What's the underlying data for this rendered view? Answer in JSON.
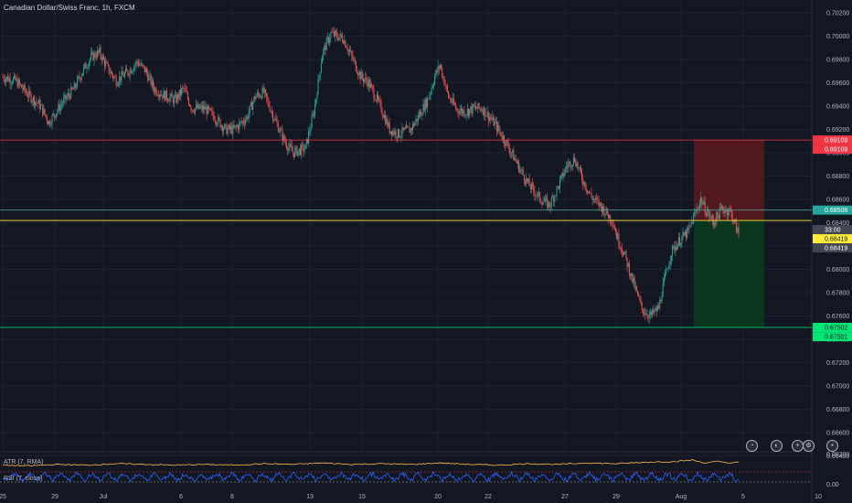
{
  "header": {
    "title": "Canadian Dollar/Swiss Franc, 1h, FXCM"
  },
  "indicators": {
    "atr_label": "ATR (7, RMA)",
    "rsi_label": "RSI (7, close)"
  },
  "toolbar": {
    "icons": [
      "alert-icon",
      "gear-icon",
      "add-icon",
      "settings-icon",
      "more-icon"
    ]
  },
  "chart_data": {
    "type": "candlestick",
    "title": "Canadian Dollar/Swiss Franc, 1h, FXCM",
    "y_ticks": [
      "0.70200",
      "0.70000",
      "0.69800",
      "0.69600",
      "0.69400",
      "0.69200",
      "0.69000",
      "0.68800",
      "0.68600",
      "0.68400",
      "0.68200",
      "0.68000",
      "0.67800",
      "0.67600",
      "0.67400",
      "0.67200",
      "0.67000",
      "0.66800",
      "0.66600",
      "0.66400"
    ],
    "ylim": [
      0.6637,
      0.7028
    ],
    "x_ticks": [
      "25",
      "29",
      "Jul",
      "6",
      "8",
      "13",
      "15",
      "20",
      "22",
      "27",
      "29",
      "Aug",
      "5",
      "10"
    ],
    "close_path": [
      [
        0,
        0.6965
      ],
      [
        3,
        0.6962
      ],
      [
        6,
        0.695
      ],
      [
        9,
        0.694
      ],
      [
        11,
        0.6926
      ],
      [
        14,
        0.6942
      ],
      [
        17,
        0.6955
      ],
      [
        19,
        0.697
      ],
      [
        21,
        0.6982
      ],
      [
        23,
        0.6986
      ],
      [
        25,
        0.6972
      ],
      [
        27,
        0.6962
      ],
      [
        30,
        0.697
      ],
      [
        32,
        0.6978
      ],
      [
        34,
        0.697
      ],
      [
        36,
        0.6955
      ],
      [
        38,
        0.695
      ],
      [
        41,
        0.6945
      ],
      [
        43,
        0.6955
      ],
      [
        45,
        0.6938
      ],
      [
        48,
        0.6938
      ],
      [
        50,
        0.6932
      ],
      [
        53,
        0.692
      ],
      [
        55,
        0.692
      ],
      [
        58,
        0.693
      ],
      [
        60,
        0.6948
      ],
      [
        62,
        0.6952
      ],
      [
        65,
        0.6926
      ],
      [
        67,
        0.691
      ],
      [
        69,
        0.69
      ],
      [
        72,
        0.6904
      ],
      [
        74,
        0.6935
      ],
      [
        76,
        0.6985
      ],
      [
        78,
        0.7002
      ],
      [
        81,
        0.6998
      ],
      [
        83,
        0.6982
      ],
      [
        85,
        0.6966
      ],
      [
        87,
        0.696
      ],
      [
        90,
        0.6938
      ],
      [
        92,
        0.692
      ],
      [
        94,
        0.6916
      ],
      [
        97,
        0.692
      ],
      [
        99,
        0.6932
      ],
      [
        101,
        0.6945
      ],
      [
        103,
        0.6968
      ],
      [
        104,
        0.6975
      ],
      [
        106,
        0.6948
      ],
      [
        108,
        0.6937
      ],
      [
        110,
        0.6935
      ],
      [
        112,
        0.6938
      ],
      [
        114,
        0.6938
      ],
      [
        117,
        0.6925
      ],
      [
        119,
        0.6913
      ],
      [
        121,
        0.69
      ],
      [
        123,
        0.6886
      ],
      [
        125,
        0.6873
      ],
      [
        128,
        0.686
      ],
      [
        130,
        0.6855
      ],
      [
        132,
        0.687
      ],
      [
        134,
        0.6888
      ],
      [
        136,
        0.6895
      ],
      [
        138,
        0.6876
      ],
      [
        140,
        0.6862
      ],
      [
        142,
        0.6855
      ],
      [
        145,
        0.6842
      ],
      [
        146,
        0.6829
      ],
      [
        148,
        0.6811
      ],
      [
        150,
        0.6788
      ],
      [
        152,
        0.6766
      ],
      [
        154,
        0.676
      ],
      [
        156,
        0.6767
      ],
      [
        157,
        0.6785
      ],
      [
        159,
        0.6815
      ],
      [
        161,
        0.6825
      ],
      [
        163,
        0.6832
      ],
      [
        164,
        0.6842
      ],
      [
        166,
        0.686
      ],
      [
        167,
        0.6852
      ],
      [
        169,
        0.684
      ],
      [
        171,
        0.6852
      ],
      [
        173,
        0.685
      ],
      [
        175,
        0.683
      ]
    ],
    "atr_path": [
      [
        0,
        3
      ],
      [
        6,
        2
      ],
      [
        13,
        4
      ],
      [
        20,
        3
      ],
      [
        27,
        5
      ],
      [
        34,
        4
      ],
      [
        41,
        3
      ],
      [
        48,
        4
      ],
      [
        55,
        3
      ],
      [
        62,
        5
      ],
      [
        69,
        4
      ],
      [
        76,
        6
      ],
      [
        83,
        4
      ],
      [
        90,
        5
      ],
      [
        97,
        4
      ],
      [
        104,
        6
      ],
      [
        111,
        4
      ],
      [
        118,
        3
      ],
      [
        125,
        5
      ],
      [
        132,
        4
      ],
      [
        139,
        6
      ],
      [
        146,
        5
      ],
      [
        153,
        7
      ],
      [
        160,
        8
      ],
      [
        164,
        10
      ],
      [
        167,
        6
      ],
      [
        170,
        8
      ],
      [
        173,
        6
      ],
      [
        175,
        7
      ]
    ],
    "lines": [
      {
        "name": "stop-line",
        "value": 0.69109,
        "color": "#f23645"
      },
      {
        "name": "entry-line",
        "value": 0.68508,
        "color": "#5fa8a0"
      },
      {
        "name": "yellow-line",
        "value": 0.68419,
        "color": "#ffeb3b"
      },
      {
        "name": "target-line",
        "value": 0.67502,
        "color": "#00e676"
      }
    ],
    "position": {
      "entry": 0.68419,
      "stop": 0.69109,
      "target": 0.67501,
      "color_risk": "#5d1a1f",
      "color_reward": "#0b3a1e"
    },
    "labels": [
      {
        "text": "0.69109",
        "value": 0.69109,
        "bg": "#f23645",
        "fg": "#ffffff"
      },
      {
        "text": "0.69109",
        "value": 0.69109,
        "bg": "#f23645",
        "fg": "#ffffff",
        "offset": 1
      },
      {
        "text": "0.68508",
        "value": 0.68508,
        "bg": "#26a69a",
        "fg": "#ffffff"
      },
      {
        "text": "33:00",
        "value": 0.68419,
        "bg": "#434651",
        "fg": "#ffffff",
        "offset": 1
      },
      {
        "text": "0.68419",
        "value": 0.68419,
        "bg": "#ffeb3b",
        "fg": "#131722",
        "offset": 2
      },
      {
        "text": "0.68419",
        "value": 0.68419,
        "bg": "#434651",
        "fg": "#ffffff",
        "offset": 3
      },
      {
        "text": "0.67502",
        "value": 0.67502,
        "bg": "#00e676",
        "fg": "#131722"
      },
      {
        "text": "0.67501",
        "value": 0.67501,
        "bg": "#00e676",
        "fg": "#131722",
        "offset": 1
      }
    ],
    "indicator_ticks": [
      {
        "text": "0.00200",
        "pane": "atr"
      },
      {
        "text": "0.00",
        "pane": "rsi"
      }
    ],
    "up_color": "#26a69a",
    "down_color": "#ef5350"
  }
}
